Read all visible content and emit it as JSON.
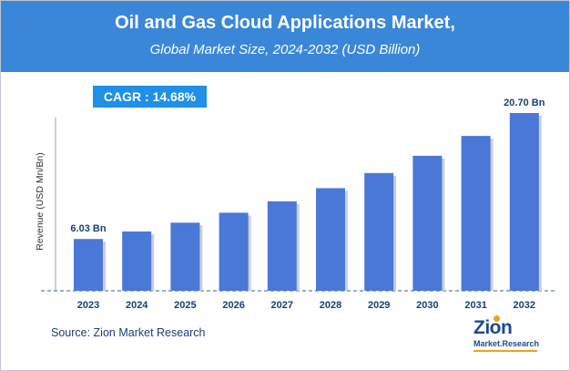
{
  "title": "Oil and Gas Cloud Applications Market,",
  "subtitle": "Global Market Size, 2024-2032 (USD Billion)",
  "cagr_label": "CAGR :  14.68%",
  "source": "Source: Zion Market Research",
  "logo": {
    "main": "Zion",
    "sub": "Market.Research"
  },
  "colors": {
    "header": "#3a87d9",
    "bar": "#4a78d6",
    "cagr_box": "#1f8fe8"
  },
  "chart_data": {
    "type": "bar",
    "title": "Oil and Gas Cloud Applications Market,",
    "subtitle": "Global Market Size, 2024-2032 (USD Billion)",
    "xlabel": "",
    "ylabel": "Revenue (USD Mn/Bn)",
    "categories": [
      "2023",
      "2024",
      "2025",
      "2026",
      "2027",
      "2028",
      "2029",
      "2030",
      "2031",
      "2032"
    ],
    "values": [
      6.03,
      6.91,
      7.93,
      9.09,
      10.42,
      11.95,
      13.71,
      15.72,
      18.03,
      20.7
    ],
    "data_labels": [
      "6.03 Bn",
      "",
      "",
      "",
      "",
      "",
      "",
      "",
      "",
      "20.70 Bn"
    ],
    "ylim": [
      0,
      21
    ],
    "grid": false,
    "legend": "none"
  }
}
